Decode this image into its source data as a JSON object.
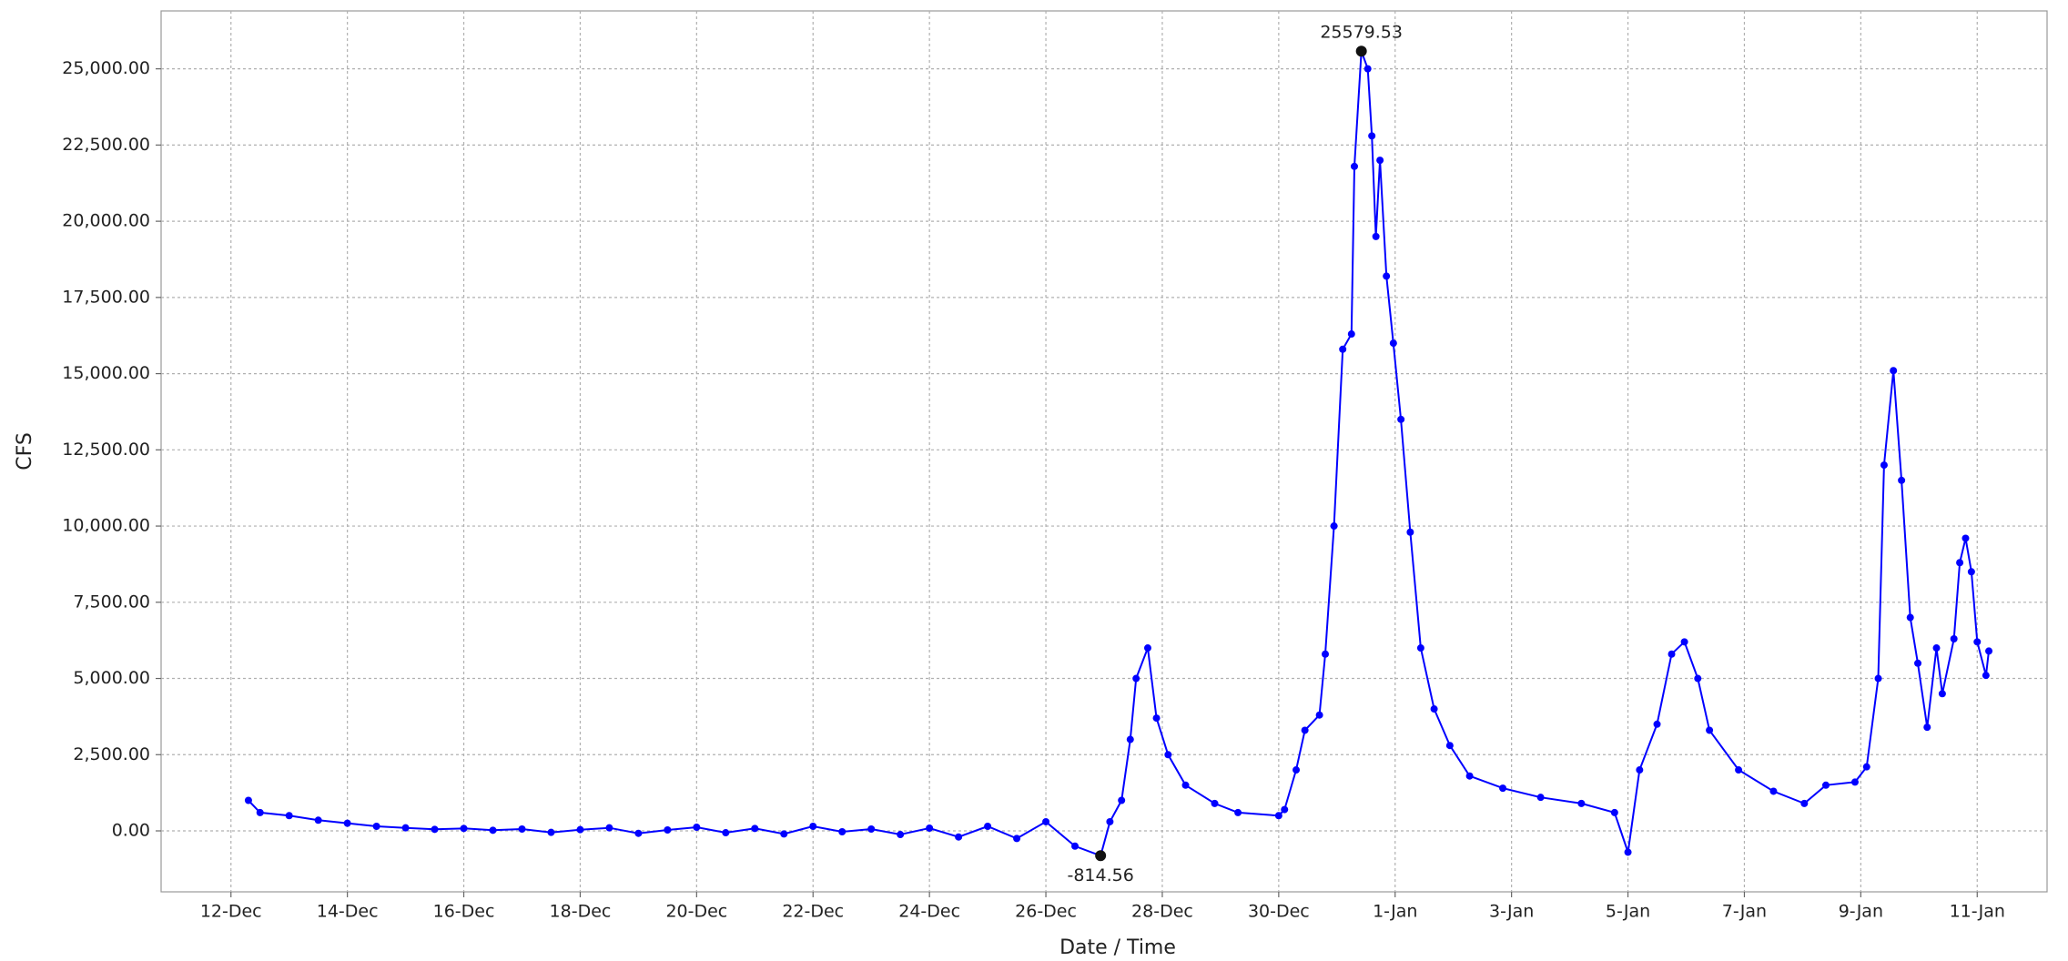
{
  "chart_data": {
    "type": "line",
    "x_label": "Date / Time",
    "y_label": "CFS",
    "x": [
      0.3,
      0.5,
      1,
      1.5,
      2,
      2.5,
      3,
      3.5,
      4,
      4.5,
      5,
      5.5,
      6,
      6.5,
      7,
      7.5,
      8,
      8.5,
      9,
      9.5,
      10,
      10.5,
      11,
      11.5,
      12,
      12.5,
      13,
      13.5,
      14,
      14.5,
      14.94,
      15.1,
      15.3,
      15.45,
      15.55,
      15.75,
      15.9,
      16.1,
      16.4,
      16.9,
      17.3,
      18.0,
      18.1,
      18.3,
      18.45,
      18.7,
      18.8,
      18.95,
      19.1,
      19.25,
      19.3,
      19.42,
      19.53,
      19.6,
      19.67,
      19.74,
      19.85,
      19.97,
      20.1,
      20.26,
      20.44,
      20.67,
      20.94,
      21.28,
      21.85,
      22.5,
      23.2,
      23.77,
      24.0,
      24.2,
      24.5,
      24.75,
      24.97,
      25.2,
      25.4,
      25.9,
      26.5,
      27.03,
      27.4,
      27.9,
      28.1,
      28.3,
      28.4,
      28.56,
      28.7,
      28.85,
      28.98,
      29.14,
      29.3,
      29.4,
      29.6,
      29.7,
      29.8,
      29.9,
      30.0,
      30.15,
      30.2
    ],
    "series": [
      {
        "name": "CFS",
        "color": "#0000ff",
        "values": [
          1000,
          600,
          500,
          350,
          250,
          150,
          100,
          50,
          80,
          20,
          60,
          -50,
          40,
          100,
          -80,
          30,
          120,
          -60,
          80,
          -100,
          150,
          -30,
          60,
          -120,
          90,
          -200,
          150,
          -250,
          300,
          -500,
          -814.56,
          300,
          1000,
          3000,
          5000,
          6000,
          3700,
          2500,
          1500,
          900,
          600,
          500,
          700,
          2000,
          3300,
          3800,
          5800,
          10000,
          15800,
          16300,
          21800,
          25579.53,
          25000,
          22800,
          19500,
          22000,
          18200,
          16000,
          13500,
          9800,
          6000,
          4000,
          2800,
          1800,
          1400,
          1100,
          900,
          600,
          -700,
          2000,
          3500,
          5800,
          6200,
          5000,
          3300,
          2000,
          1300,
          900,
          1500,
          1600,
          2100,
          5000,
          12000,
          15100,
          11500,
          7000,
          5500,
          3400,
          6000,
          4500,
          6300,
          8800,
          9600,
          8500,
          6200,
          5100,
          5900
        ]
      }
    ],
    "annotations": [
      {
        "text": "25579.53",
        "x": 19.42,
        "y": 25579.53
      },
      {
        "text": "-814.56",
        "x": 14.94,
        "y": -814.56
      }
    ],
    "xlim": [
      -1.2,
      31.2
    ],
    "xticks": [
      {
        "value": 0,
        "label": "12-Dec"
      },
      {
        "value": 2,
        "label": "14-Dec"
      },
      {
        "value": 4,
        "label": "16-Dec"
      },
      {
        "value": 6,
        "label": "18-Dec"
      },
      {
        "value": 8,
        "label": "20-Dec"
      },
      {
        "value": 10,
        "label": "22-Dec"
      },
      {
        "value": 12,
        "label": "24-Dec"
      },
      {
        "value": 14,
        "label": "26-Dec"
      },
      {
        "value": 16,
        "label": "28-Dec"
      },
      {
        "value": 18,
        "label": "30-Dec"
      },
      {
        "value": 20,
        "label": "1-Jan"
      },
      {
        "value": 22,
        "label": "3-Jan"
      },
      {
        "value": 24,
        "label": "5-Jan"
      },
      {
        "value": 26,
        "label": "7-Jan"
      },
      {
        "value": 28,
        "label": "9-Jan"
      },
      {
        "value": 30,
        "label": "11-Jan"
      }
    ],
    "ylim": [
      -2000,
      26900
    ],
    "yticks": [
      {
        "value": 0,
        "label": "0.00"
      },
      {
        "value": 2500,
        "label": "2,500.00"
      },
      {
        "value": 5000,
        "label": "5,000.00"
      },
      {
        "value": 7500,
        "label": "7,500.00"
      },
      {
        "value": 10000,
        "label": "10,000.00"
      },
      {
        "value": 12500,
        "label": "12,500.00"
      },
      {
        "value": 15000,
        "label": "15,000.00"
      },
      {
        "value": 17500,
        "label": "17,500.00"
      },
      {
        "value": 20000,
        "label": "20,000.00"
      },
      {
        "value": 22500,
        "label": "22,500.00"
      },
      {
        "value": 25000,
        "label": "25,000.00"
      }
    ],
    "grid": true
  }
}
